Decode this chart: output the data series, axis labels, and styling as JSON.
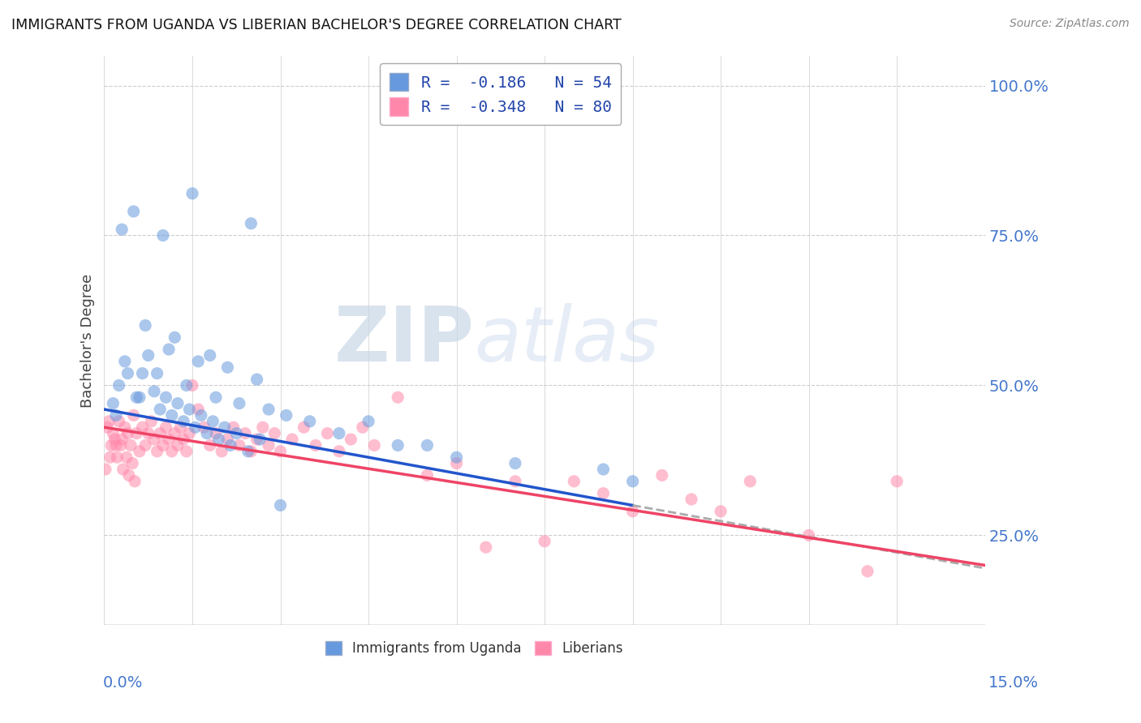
{
  "title": "IMMIGRANTS FROM UGANDA VS LIBERIAN BACHELOR'S DEGREE CORRELATION CHART",
  "source": "Source: ZipAtlas.com",
  "ylabel": "Bachelor's Degree",
  "xmin": 0.0,
  "xmax": 15.0,
  "ymin": 10.0,
  "ymax": 105.0,
  "yticks": [
    25.0,
    50.0,
    75.0,
    100.0
  ],
  "legend_r1": "R =  -0.186   N = 54",
  "legend_r2": "R =  -0.348   N = 80",
  "blue_color": "#6699dd",
  "pink_color": "#ff88aa",
  "blue_line_color": "#2255cc",
  "pink_line_color": "#ee4466",
  "dash_color": "#aaaaaa",
  "watermark_zip": "ZIP",
  "watermark_atlas": "atlas",
  "background_color": "#ffffff",
  "grid_color": "#cccccc",
  "dot_size": 120,
  "dot_alpha": 0.55,
  "blue_scatter_x": [
    0.5,
    1.0,
    1.5,
    2.5,
    0.3,
    0.7,
    1.2,
    1.8,
    0.2,
    0.4,
    0.6,
    0.9,
    1.1,
    1.4,
    1.6,
    1.9,
    2.1,
    2.3,
    2.6,
    2.8,
    3.1,
    3.5,
    4.0,
    4.5,
    5.0,
    5.5,
    6.0,
    7.0,
    8.5,
    9.0,
    0.15,
    0.25,
    0.35,
    0.55,
    0.65,
    0.75,
    0.85,
    0.95,
    1.05,
    1.15,
    1.25,
    1.35,
    1.45,
    1.55,
    1.65,
    1.75,
    1.85,
    1.95,
    2.05,
    2.15,
    2.25,
    2.45,
    2.65,
    3.0
  ],
  "blue_scatter_y": [
    79.0,
    75.0,
    82.0,
    77.0,
    76.0,
    60.0,
    58.0,
    55.0,
    45.0,
    52.0,
    48.0,
    52.0,
    56.0,
    50.0,
    54.0,
    48.0,
    53.0,
    47.0,
    51.0,
    46.0,
    45.0,
    44.0,
    42.0,
    44.0,
    40.0,
    40.0,
    38.0,
    37.0,
    36.0,
    34.0,
    47.0,
    50.0,
    54.0,
    48.0,
    52.0,
    55.0,
    49.0,
    46.0,
    48.0,
    45.0,
    47.0,
    44.0,
    46.0,
    43.0,
    45.0,
    42.0,
    44.0,
    41.0,
    43.0,
    40.0,
    42.0,
    39.0,
    41.0,
    30.0
  ],
  "pink_scatter_x": [
    0.05,
    0.1,
    0.15,
    0.2,
    0.25,
    0.3,
    0.35,
    0.4,
    0.45,
    0.5,
    0.55,
    0.6,
    0.65,
    0.7,
    0.75,
    0.8,
    0.85,
    0.9,
    0.95,
    1.0,
    1.05,
    1.1,
    1.15,
    1.2,
    1.25,
    1.3,
    1.35,
    1.4,
    1.45,
    1.5,
    1.6,
    1.7,
    1.8,
    1.9,
    2.0,
    2.1,
    2.2,
    2.3,
    2.4,
    2.5,
    2.6,
    2.7,
    2.8,
    2.9,
    3.0,
    3.2,
    3.4,
    3.6,
    3.8,
    4.0,
    4.2,
    4.4,
    4.6,
    5.0,
    5.5,
    6.0,
    6.5,
    7.0,
    7.5,
    8.0,
    8.5,
    9.0,
    9.5,
    10.0,
    10.5,
    11.0,
    12.0,
    13.0,
    13.5,
    0.02,
    0.08,
    0.12,
    0.18,
    0.22,
    0.28,
    0.32,
    0.38,
    0.42,
    0.48,
    0.52
  ],
  "pink_scatter_y": [
    43.0,
    38.0,
    42.0,
    40.0,
    44.0,
    41.0,
    43.0,
    42.0,
    40.0,
    45.0,
    42.0,
    39.0,
    43.0,
    40.0,
    42.0,
    44.0,
    41.0,
    39.0,
    42.0,
    40.0,
    43.0,
    41.0,
    39.0,
    42.0,
    40.0,
    43.0,
    41.0,
    39.0,
    42.0,
    50.0,
    46.0,
    43.0,
    40.0,
    42.0,
    39.0,
    41.0,
    43.0,
    40.0,
    42.0,
    39.0,
    41.0,
    43.0,
    40.0,
    42.0,
    39.0,
    41.0,
    43.0,
    40.0,
    42.0,
    39.0,
    41.0,
    43.0,
    40.0,
    48.0,
    35.0,
    37.0,
    23.0,
    34.0,
    24.0,
    34.0,
    32.0,
    29.0,
    35.0,
    31.0,
    29.0,
    34.0,
    25.0,
    19.0,
    34.0,
    36.0,
    44.0,
    40.0,
    41.0,
    38.0,
    40.0,
    36.0,
    38.0,
    35.0,
    37.0,
    34.0
  ],
  "blue_line_x0": 0.0,
  "blue_line_x1": 9.0,
  "blue_line_y0": 46.0,
  "blue_line_y1": 30.0,
  "dash_x0": 9.0,
  "dash_x1": 15.0,
  "dash_y0": 30.0,
  "dash_y1": 19.5,
  "pink_line_x0": 0.0,
  "pink_line_x1": 15.0,
  "pink_line_y0": 43.0,
  "pink_line_y1": 20.0
}
